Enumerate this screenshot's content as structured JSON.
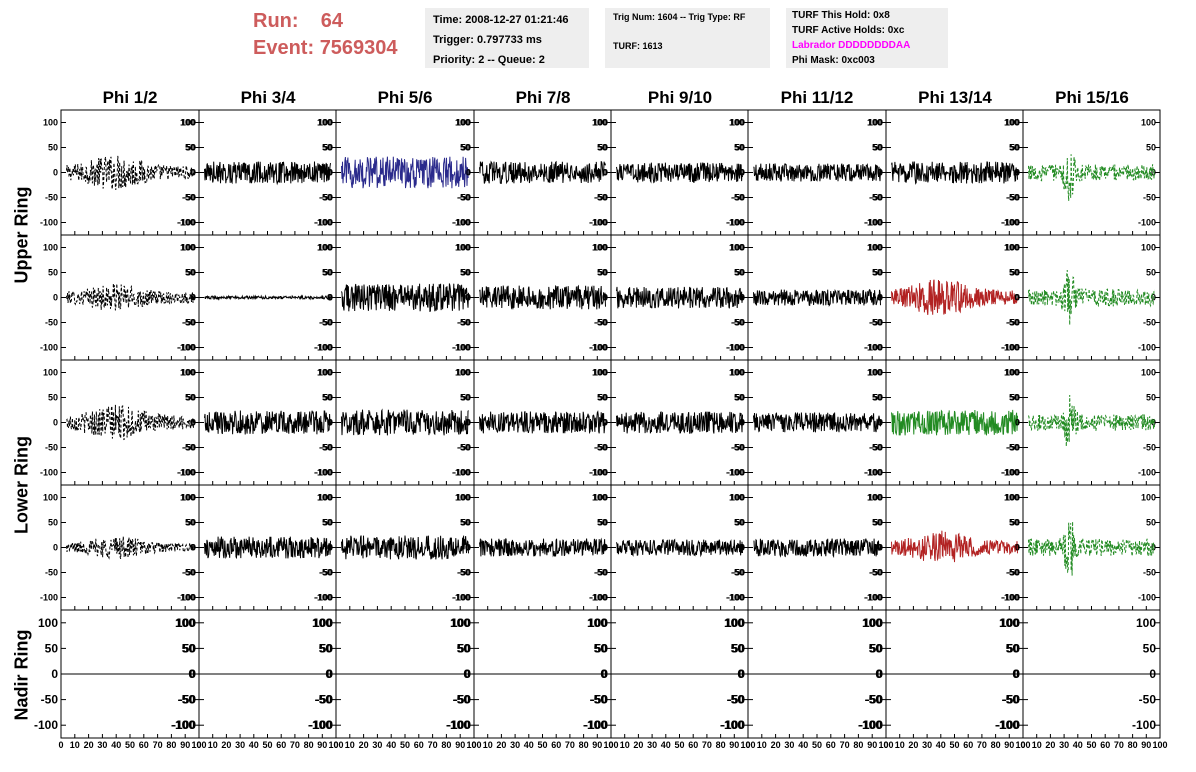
{
  "header": {
    "run_label": "Run:",
    "run_value": "64",
    "event_label": "Event:",
    "event_value": "7569304",
    "time": "Time: 2008-12-27 01:21:46",
    "trigger": "Trigger: 0.797733 ms",
    "priority": "Priority: 2 -- Queue: 2",
    "trig_num": "Trig Num: 1604 -- Trig Type: RF",
    "turf": "TURF: 1613",
    "turf_this_hold": "TURF This Hold: 0x8",
    "turf_active_holds": "TURF Active Holds: 0xc",
    "labrador": "Labrador DDDDDDDDAA",
    "phi_mask": "Phi Mask: 0xc003"
  },
  "chart_data": {
    "type": "line",
    "columns": [
      "Phi 1/2",
      "Phi 3/4",
      "Phi 5/6",
      "Phi 7/8",
      "Phi 9/10",
      "Phi 11/12",
      "Phi 13/14",
      "Phi 15/16"
    ],
    "ring_labels": [
      "Upper Ring",
      "Lower Ring",
      "Nadir Ring"
    ],
    "xlim": [
      0,
      100
    ],
    "ylim": [
      -125,
      125
    ],
    "y_ticks": [
      100,
      50,
      0,
      -50,
      -100
    ],
    "x_tick_labels": [
      "0",
      "10",
      "20",
      "30",
      "40",
      "50",
      "60",
      "70",
      "80",
      "90",
      "100"
    ],
    "colors": {
      "black": "#000000",
      "blue": "#2a2a8c",
      "red": "#b22222",
      "green": "#228b22",
      "magenta": "#ff00ff",
      "title_red": "#cd5c5c"
    },
    "rows": [
      {
        "panels": [
          {
            "color": "black",
            "style": "dashed",
            "amp": 28,
            "env": "burst"
          },
          {
            "color": "black",
            "style": "solid",
            "amp": 22,
            "env": "flat"
          },
          {
            "color": "blue",
            "style": "solid",
            "amp": 32,
            "env": "flat"
          },
          {
            "color": "black",
            "style": "solid",
            "amp": 22,
            "env": "flat"
          },
          {
            "color": "black",
            "style": "solid",
            "amp": 20,
            "env": "flat"
          },
          {
            "color": "black",
            "style": "solid",
            "amp": 18,
            "env": "flat"
          },
          {
            "color": "black",
            "style": "solid",
            "amp": 22,
            "env": "flat"
          },
          {
            "color": "green",
            "style": "dashed",
            "amp": 30,
            "env": "pulse"
          }
        ]
      },
      {
        "panels": [
          {
            "color": "black",
            "style": "dashed",
            "amp": 22,
            "env": "burst"
          },
          {
            "color": "black",
            "style": "solid",
            "amp": 3,
            "env": "flat"
          },
          {
            "color": "black",
            "style": "solid",
            "amp": 28,
            "env": "flat"
          },
          {
            "color": "black",
            "style": "solid",
            "amp": 24,
            "env": "flat"
          },
          {
            "color": "black",
            "style": "solid",
            "amp": 22,
            "env": "flat"
          },
          {
            "color": "black",
            "style": "solid",
            "amp": 16,
            "env": "flat"
          },
          {
            "color": "red",
            "style": "solid",
            "amp": 30,
            "env": "burst"
          },
          {
            "color": "green",
            "style": "dashed",
            "amp": 32,
            "env": "pulse"
          }
        ]
      },
      {
        "panels": [
          {
            "color": "black",
            "style": "dashed",
            "amp": 28,
            "env": "burst"
          },
          {
            "color": "black",
            "style": "solid",
            "amp": 24,
            "env": "flat"
          },
          {
            "color": "black",
            "style": "solid",
            "amp": 26,
            "env": "flat"
          },
          {
            "color": "black",
            "style": "solid",
            "amp": 22,
            "env": "flat"
          },
          {
            "color": "black",
            "style": "solid",
            "amp": 22,
            "env": "flat"
          },
          {
            "color": "black",
            "style": "solid",
            "amp": 20,
            "env": "flat"
          },
          {
            "color": "green",
            "style": "solid",
            "amp": 26,
            "env": "flat"
          },
          {
            "color": "green",
            "style": "dashed",
            "amp": 30,
            "env": "pulse"
          }
        ]
      },
      {
        "panels": [
          {
            "color": "black",
            "style": "dashed",
            "amp": 18,
            "env": "burst"
          },
          {
            "color": "black",
            "style": "solid",
            "amp": 22,
            "env": "flat"
          },
          {
            "color": "black",
            "style": "solid",
            "amp": 24,
            "env": "flat"
          },
          {
            "color": "black",
            "style": "solid",
            "amp": 18,
            "env": "flat"
          },
          {
            "color": "black",
            "style": "solid",
            "amp": 16,
            "env": "flat"
          },
          {
            "color": "black",
            "style": "solid",
            "amp": 18,
            "env": "flat"
          },
          {
            "color": "red",
            "style": "solid",
            "amp": 26,
            "env": "burst"
          },
          {
            "color": "green",
            "style": "dashed",
            "amp": 32,
            "env": "pulse"
          }
        ]
      },
      {
        "panels": [
          {
            "color": "black",
            "style": "solid",
            "amp": 0,
            "env": "flat"
          },
          {
            "color": "black",
            "style": "solid",
            "amp": 0,
            "env": "flat"
          },
          {
            "color": "black",
            "style": "solid",
            "amp": 0,
            "env": "flat"
          },
          {
            "color": "black",
            "style": "solid",
            "amp": 0,
            "env": "flat"
          },
          {
            "color": "black",
            "style": "solid",
            "amp": 0,
            "env": "flat"
          },
          {
            "color": "black",
            "style": "solid",
            "amp": 0,
            "env": "flat"
          },
          {
            "color": "black",
            "style": "solid",
            "amp": 0,
            "env": "flat"
          },
          {
            "color": "black",
            "style": "solid",
            "amp": 0,
            "env": "flat"
          }
        ]
      }
    ]
  }
}
